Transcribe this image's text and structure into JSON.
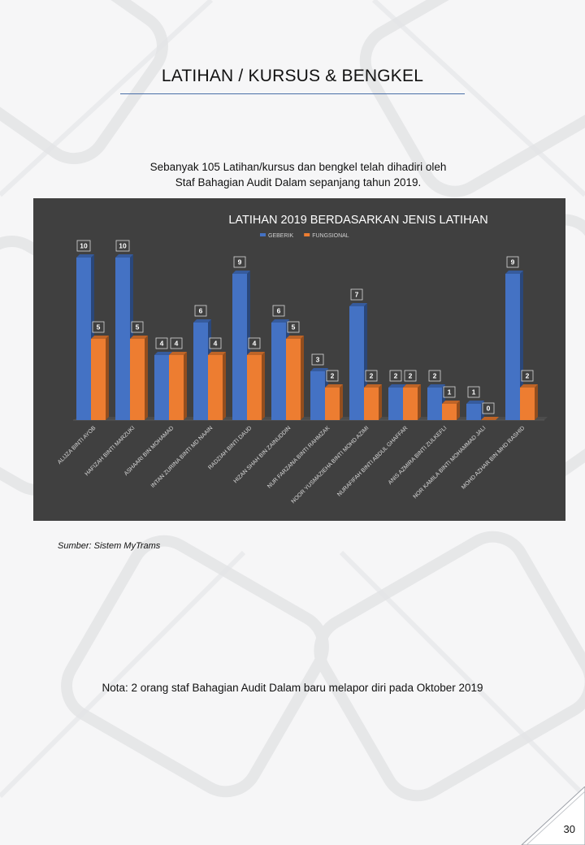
{
  "page": {
    "title": "LATIHAN / KURSUS & BENGKEL",
    "intro_line1": "Sebanyak 105 Latihan/kursus dan bengkel telah dihadiri oleh",
    "intro_line2": "Staf Bahagian Audit Dalam sepanjang tahun 2019.",
    "source": "Sumber: Sistem  MyTrams",
    "note": "Nota: 2 orang staf Bahagian Audit Dalam baru melapor diri pada Oktober 2019",
    "page_number": "30"
  },
  "colors": {
    "panel_bg": "#404040",
    "generik": "#4472c4",
    "fungsional": "#ed7d31",
    "text_light": "#ffffff"
  },
  "chart_data": {
    "type": "bar",
    "title": "LATIHAN 2019 BERDASARKAN JENIS LATIHAN",
    "legend_position": "top",
    "categories": [
      "ALIJZA BINTI AYOB",
      "HAFIZAH BINTI MARZUKI",
      "ASHAARI BIN MOHAMAD",
      "INTAN ZURINA BINTI MD NAAIN",
      "RADZIAH BINTI DAUD",
      "HIZAN SHAH BIN ZAINUDDIN",
      "NUR FARZANA BINTI RAHMZAK",
      "NOOR YUSMAZIEHA BINTI MOHD AZIMI",
      "NURAFIFAH BINTI ABDUL GHAFFAR",
      "ANIS AZMIRA BINTI ZULKEFLI",
      "NOR KAMILA BINTI MOHAMMAD JALI",
      "MOHD AZHAR BIN MHD RASHID"
    ],
    "series": [
      {
        "name": "GEBERIK",
        "values": [
          10,
          10,
          4,
          6,
          9,
          6,
          3,
          7,
          2,
          2,
          1,
          9
        ]
      },
      {
        "name": "FUNGSIONAL",
        "values": [
          5,
          5,
          4,
          4,
          4,
          5,
          2,
          2,
          2,
          1,
          0,
          2
        ]
      }
    ],
    "ylim": [
      0,
      10
    ],
    "grid": false,
    "data_labels": true
  }
}
